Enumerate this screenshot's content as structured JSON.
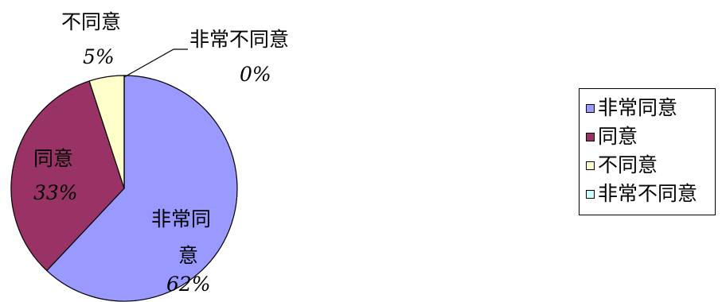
{
  "chart_data": {
    "type": "pie",
    "title": "",
    "categories": [
      "非常同意",
      "同意",
      "不同意",
      "非常不同意"
    ],
    "values": [
      62,
      33,
      5,
      0
    ],
    "colors": [
      "#9999ff",
      "#993366",
      "#ffffcc",
      "#ccffff"
    ],
    "data_labels": [
      {
        "category": "非常同意",
        "text": "非常同意",
        "percent": "62%"
      },
      {
        "category": "同意",
        "text": "同意",
        "percent": "33%"
      },
      {
        "category": "不同意",
        "text": "不同意",
        "percent": "5%"
      },
      {
        "category": "非常不同意",
        "text": "非常不同意",
        "percent": "0%"
      }
    ],
    "legend": {
      "position": "right",
      "items": [
        "非常同意",
        "同意",
        "不同意",
        "非常不同意"
      ]
    }
  }
}
